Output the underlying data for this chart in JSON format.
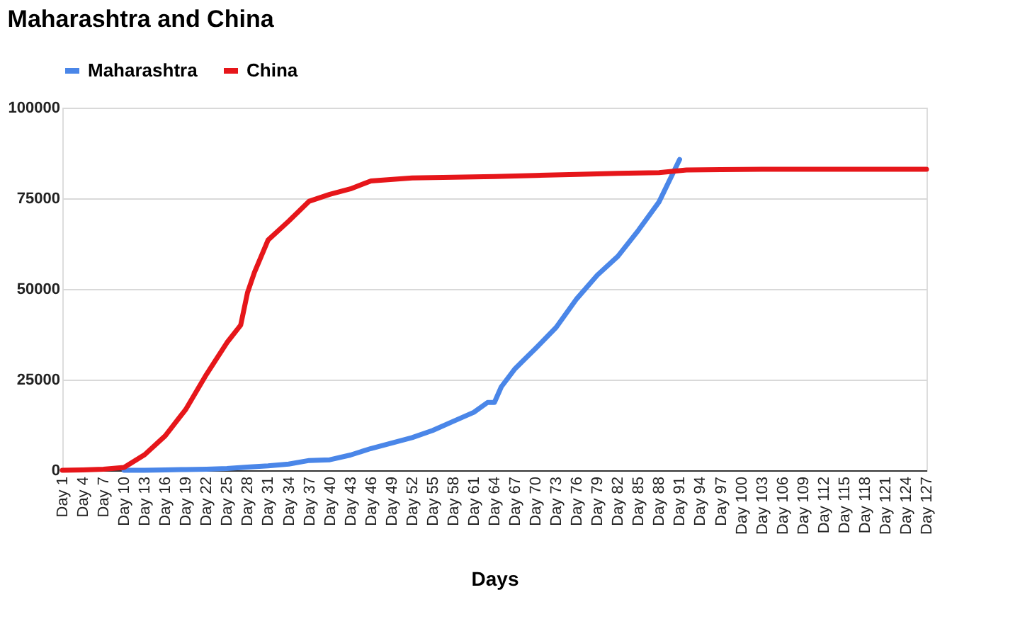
{
  "chart_data": {
    "type": "line",
    "title": "Maharashtra and China",
    "xlabel": "Days",
    "categories": [
      "Day 1",
      null,
      null,
      "Day 4",
      null,
      null,
      "Day 7",
      null,
      null,
      "Day 10",
      null,
      null,
      "Day 13",
      null,
      null,
      "Day 16",
      null,
      null,
      "Day 19",
      null,
      null,
      "Day 22",
      null,
      null,
      "Day 25",
      null,
      null,
      "Day 28",
      null,
      null,
      "Day 31",
      null,
      null,
      "Day 34",
      null,
      null,
      "Day 37",
      null,
      null,
      "Day 40",
      null,
      null,
      "Day 43",
      null,
      null,
      "Day 46",
      null,
      null,
      "Day 49",
      null,
      null,
      "Day 52",
      null,
      null,
      "Day 55",
      null,
      null,
      "Day 58",
      null,
      null,
      "Day 61",
      null,
      null,
      "Day 64",
      null,
      null,
      "Day 67",
      null,
      null,
      "Day 70",
      null,
      null,
      "Day 73",
      null,
      null,
      "Day 76",
      null,
      null,
      "Day 79",
      null,
      null,
      "Day 82",
      null,
      null,
      "Day 85",
      null,
      null,
      "Day 88",
      null,
      null,
      "Day 91",
      null,
      null,
      "Day 94",
      null,
      null,
      "Day 97",
      null,
      null,
      "Day 100",
      null,
      null,
      "Day 103",
      null,
      null,
      "Day 106",
      null,
      null,
      "Day 109",
      null,
      null,
      "Day 112",
      null,
      null,
      "Day 115",
      null,
      null,
      "Day 118",
      null,
      null,
      "Day 121",
      null,
      null,
      "Day 124",
      null,
      null,
      "Day 127"
    ],
    "series": [
      {
        "name": "Maharashtra",
        "color": "#4a86e8",
        "values": [
          null,
          null,
          null,
          null,
          null,
          null,
          null,
          null,
          null,
          0,
          null,
          null,
          0,
          null,
          null,
          100,
          null,
          null,
          200,
          null,
          null,
          300,
          null,
          null,
          500,
          null,
          null,
          900,
          null,
          null,
          1200,
          null,
          null,
          1700,
          null,
          null,
          2700,
          null,
          null,
          2900,
          null,
          null,
          4200,
          null,
          null,
          6000,
          null,
          null,
          7500,
          null,
          null,
          9000,
          null,
          null,
          11000,
          null,
          null,
          13500,
          null,
          null,
          16000,
          null,
          18700,
          18700,
          23000,
          null,
          28000,
          null,
          null,
          33600,
          null,
          null,
          39400,
          null,
          null,
          47300,
          null,
          null,
          53800,
          null,
          null,
          59000,
          null,
          null,
          66200,
          null,
          null,
          74000,
          null,
          null,
          85700,
          null,
          null,
          null,
          null,
          null,
          null,
          null,
          null,
          null,
          null,
          null,
          null,
          null,
          null,
          null,
          null,
          null,
          null,
          null,
          null,
          null,
          null,
          null,
          null,
          null,
          null,
          null,
          null,
          null,
          null,
          null,
          null,
          null,
          null,
          null,
          null
        ]
      },
      {
        "name": "China",
        "color": "#e6161a",
        "values": [
          0,
          null,
          null,
          100,
          null,
          null,
          300,
          null,
          null,
          800,
          null,
          null,
          4300,
          null,
          null,
          9500,
          null,
          null,
          16800,
          null,
          null,
          26400,
          null,
          null,
          35200,
          null,
          40000,
          49000,
          54500,
          null,
          63500,
          null,
          null,
          68700,
          null,
          null,
          74200,
          null,
          null,
          76100,
          null,
          null,
          77600,
          null,
          null,
          79800,
          null,
          null,
          null,
          null,
          null,
          80600,
          null,
          null,
          null,
          null,
          null,
          80800,
          null,
          null,
          null,
          null,
          null,
          81000,
          null,
          null,
          null,
          null,
          null,
          81300,
          null,
          null,
          null,
          null,
          null,
          81600,
          null,
          null,
          null,
          null,
          null,
          81900,
          null,
          null,
          null,
          null,
          null,
          82100,
          null,
          null,
          null,
          82800,
          null,
          null,
          null,
          null,
          82900,
          null,
          null,
          null,
          null,
          null,
          83000,
          null,
          null,
          null,
          null,
          null,
          83000,
          null,
          null,
          null,
          null,
          null,
          83000,
          null,
          null,
          null,
          null,
          null,
          83000,
          null,
          null,
          null,
          null,
          null,
          83000
        ]
      }
    ],
    "ylim": [
      0,
      100000
    ],
    "yticks": [
      0,
      25000,
      50000,
      75000,
      100000
    ],
    "grid": "y",
    "legend": "top",
    "marker": "none",
    "line_style": "solid"
  }
}
